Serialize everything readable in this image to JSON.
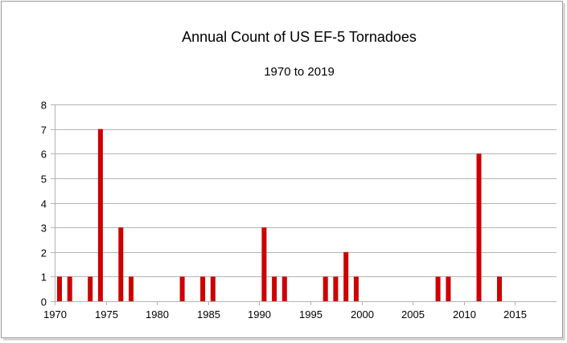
{
  "chart_data": {
    "type": "bar",
    "title": "Annual Count of US EF-5 Tornadoes",
    "subtitle": "1970 to 2019",
    "xlabel": "",
    "ylabel": "",
    "xlim": [
      1970,
      2019
    ],
    "ylim": [
      0,
      8
    ],
    "x_ticks": [
      1970,
      1975,
      1980,
      1985,
      1990,
      1995,
      2000,
      2005,
      2010,
      2015
    ],
    "y_ticks": [
      0,
      1,
      2,
      3,
      4,
      5,
      6,
      7,
      8
    ],
    "grid": true,
    "bar_color": "#cc0000",
    "series": [
      {
        "name": "EF-5 tornadoes",
        "x": [
          1970,
          1971,
          1973,
          1974,
          1976,
          1977,
          1982,
          1984,
          1985,
          1990,
          1991,
          1992,
          1996,
          1997,
          1998,
          1999,
          2007,
          2008,
          2011,
          2013
        ],
        "values": [
          1,
          1,
          1,
          7,
          3,
          1,
          1,
          1,
          1,
          3,
          1,
          1,
          1,
          1,
          2,
          1,
          1,
          1,
          6,
          1
        ]
      }
    ]
  }
}
